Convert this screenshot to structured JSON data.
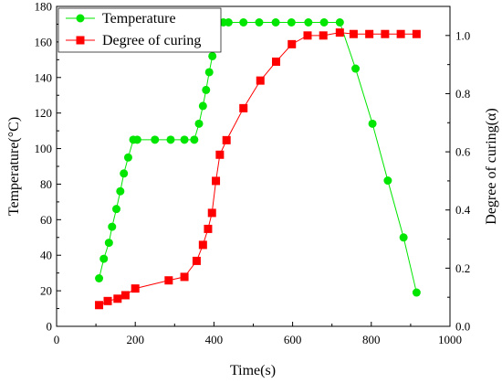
{
  "chart_data": {
    "type": "line",
    "xlabel": "Time(s)",
    "ylabel_left": "Temperature(°C)",
    "ylabel_right": "Degree of curing(α)",
    "xlim": [
      0,
      1000
    ],
    "ylim_left": [
      0,
      180
    ],
    "ylim_right": [
      0,
      1.1
    ],
    "xticks": [
      0,
      200,
      400,
      600,
      800,
      1000
    ],
    "yticks_left": [
      0,
      20,
      40,
      60,
      80,
      100,
      120,
      140,
      160,
      180
    ],
    "yticks_right": [
      0.0,
      0.2,
      0.4,
      0.6,
      0.8,
      1.0
    ],
    "xtick_labels": [
      "0",
      "200",
      "400",
      "600",
      "800",
      "1000"
    ],
    "ytick_labels_left": [
      "0",
      "20",
      "40",
      "60",
      "80",
      "100",
      "120",
      "140",
      "160",
      "180"
    ],
    "ytick_labels_right": [
      "0.0",
      "0.2",
      "0.4",
      "0.6",
      "0.8",
      "1.0"
    ],
    "grid": false,
    "legend_position": "top-left",
    "series": [
      {
        "name": "Temperature",
        "axis": "left",
        "color": "#00e600",
        "marker": "circle",
        "x": [
          108,
          120,
          133,
          141,
          152,
          162,
          171,
          182,
          195,
          205,
          250,
          290,
          325,
          350,
          362,
          372,
          380,
          388,
          396,
          404,
          413,
          424,
          437,
          475,
          515,
          557,
          597,
          640,
          680,
          720,
          760,
          803,
          842,
          882,
          915
        ],
        "y": [
          27,
          38,
          47,
          56,
          66,
          76,
          86,
          95,
          105,
          105,
          105,
          105,
          105,
          105,
          114,
          124,
          133,
          143,
          152,
          162,
          171,
          171,
          171,
          171,
          171,
          171,
          171,
          171,
          171,
          171,
          145,
          114,
          82,
          50,
          19
        ]
      },
      {
        "name": "Degree of curing",
        "axis": "right",
        "color": "#ff0000",
        "marker": "square",
        "x": [
          108,
          130,
          155,
          175,
          200,
          285,
          325,
          356,
          372,
          385,
          395,
          405,
          415,
          432,
          475,
          518,
          558,
          598,
          638,
          678,
          720,
          755,
          795,
          835,
          875,
          915
        ],
        "y": [
          0.073,
          0.087,
          0.095,
          0.107,
          0.13,
          0.158,
          0.17,
          0.225,
          0.28,
          0.335,
          0.39,
          0.5,
          0.59,
          0.64,
          0.75,
          0.845,
          0.91,
          0.97,
          1.0,
          1.0,
          1.01,
          1.005,
          1.005,
          1.005,
          1.005,
          1.005
        ]
      }
    ]
  }
}
